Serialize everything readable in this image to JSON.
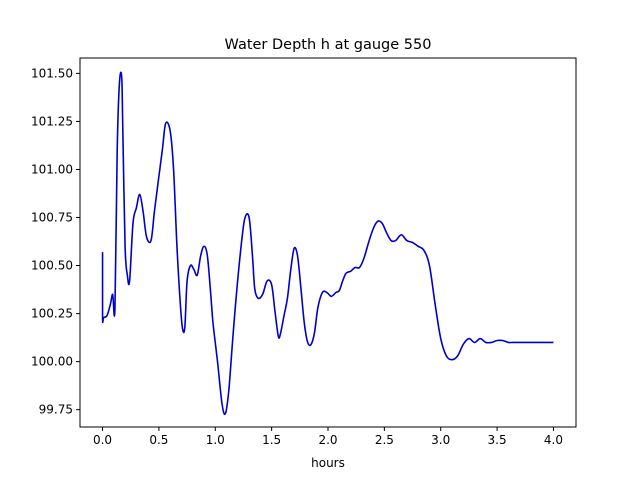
{
  "chart_data": {
    "type": "line",
    "title": "Water Depth h at gauge 550",
    "xlabel": "hours",
    "ylabel": "",
    "xlim": [
      -0.2,
      4.2
    ],
    "ylim": [
      99.66,
      101.58
    ],
    "xticks": [
      0.0,
      0.5,
      1.0,
      1.5,
      2.0,
      2.5,
      3.0,
      3.5,
      4.0
    ],
    "xtick_labels": [
      "0.0",
      "0.5",
      "1.0",
      "1.5",
      "2.0",
      "2.5",
      "3.0",
      "3.5",
      "4.0"
    ],
    "yticks": [
      99.75,
      100.0,
      100.25,
      100.5,
      100.75,
      101.0,
      101.25,
      101.5
    ],
    "ytick_labels": [
      "99.75",
      "100.00",
      "100.25",
      "100.50",
      "100.75",
      "101.00",
      "101.25",
      "101.50"
    ],
    "grid": false,
    "line_color": "#0000cc",
    "series": [
      {
        "x": [
          0.0,
          0.0,
          0.01,
          0.04,
          0.07,
          0.09,
          0.11,
          0.13,
          0.15,
          0.17,
          0.18,
          0.2,
          0.22,
          0.24,
          0.27,
          0.3,
          0.33,
          0.36,
          0.39,
          0.43,
          0.46,
          0.49,
          0.53,
          0.56,
          0.6,
          0.63,
          0.66,
          0.69,
          0.71,
          0.73,
          0.75,
          0.78,
          0.81,
          0.84,
          0.87,
          0.9,
          0.93,
          0.96,
          0.98,
          1.02,
          1.06,
          1.09,
          1.12,
          1.15,
          1.18,
          1.22,
          1.26,
          1.3,
          1.33,
          1.35,
          1.38,
          1.42,
          1.46,
          1.5,
          1.53,
          1.56,
          1.58,
          1.61,
          1.64,
          1.67,
          1.7,
          1.73,
          1.76,
          1.79,
          1.82,
          1.85,
          1.88,
          1.91,
          1.95,
          1.99,
          2.03,
          2.07,
          2.1,
          2.13,
          2.16,
          2.2,
          2.24,
          2.28,
          2.32,
          2.36,
          2.4,
          2.44,
          2.48,
          2.52,
          2.56,
          2.6,
          2.65,
          2.7,
          2.75,
          2.8,
          2.85,
          2.9,
          2.95,
          3.0,
          3.05,
          3.1,
          3.15,
          3.2,
          3.25,
          3.3,
          3.35,
          3.4,
          3.45,
          3.5,
          3.55,
          3.6,
          3.64,
          3.68,
          3.72,
          3.76,
          3.8,
          3.84,
          3.88,
          3.92,
          3.96,
          4.0
        ],
        "y": [
          100.57,
          100.23,
          100.23,
          100.24,
          100.3,
          100.35,
          100.28,
          101.1,
          101.45,
          101.48,
          101.2,
          100.6,
          100.45,
          100.42,
          100.72,
          100.8,
          100.87,
          100.78,
          100.65,
          100.63,
          100.78,
          100.92,
          101.1,
          101.24,
          101.2,
          101.0,
          100.6,
          100.3,
          100.17,
          100.18,
          100.42,
          100.5,
          100.48,
          100.45,
          100.55,
          100.6,
          100.55,
          100.35,
          100.2,
          100.0,
          99.78,
          99.73,
          99.85,
          100.08,
          100.3,
          100.55,
          100.74,
          100.75,
          100.55,
          100.38,
          100.33,
          100.35,
          100.42,
          100.4,
          100.26,
          100.13,
          100.15,
          100.24,
          100.33,
          100.48,
          100.59,
          100.55,
          100.38,
          100.2,
          100.1,
          100.09,
          100.15,
          100.28,
          100.36,
          100.36,
          100.34,
          100.36,
          100.37,
          100.42,
          100.46,
          100.47,
          100.49,
          100.49,
          100.54,
          100.62,
          100.69,
          100.73,
          100.72,
          100.67,
          100.63,
          100.63,
          100.66,
          100.63,
          100.62,
          100.6,
          100.58,
          100.5,
          100.3,
          100.12,
          100.03,
          100.01,
          100.03,
          100.09,
          100.12,
          100.1,
          100.12,
          100.1,
          100.1,
          100.11,
          100.11,
          100.1,
          100.1,
          100.1,
          100.1,
          100.1,
          100.1,
          100.1,
          100.1,
          100.1,
          100.1,
          100.1
        ]
      }
    ]
  }
}
